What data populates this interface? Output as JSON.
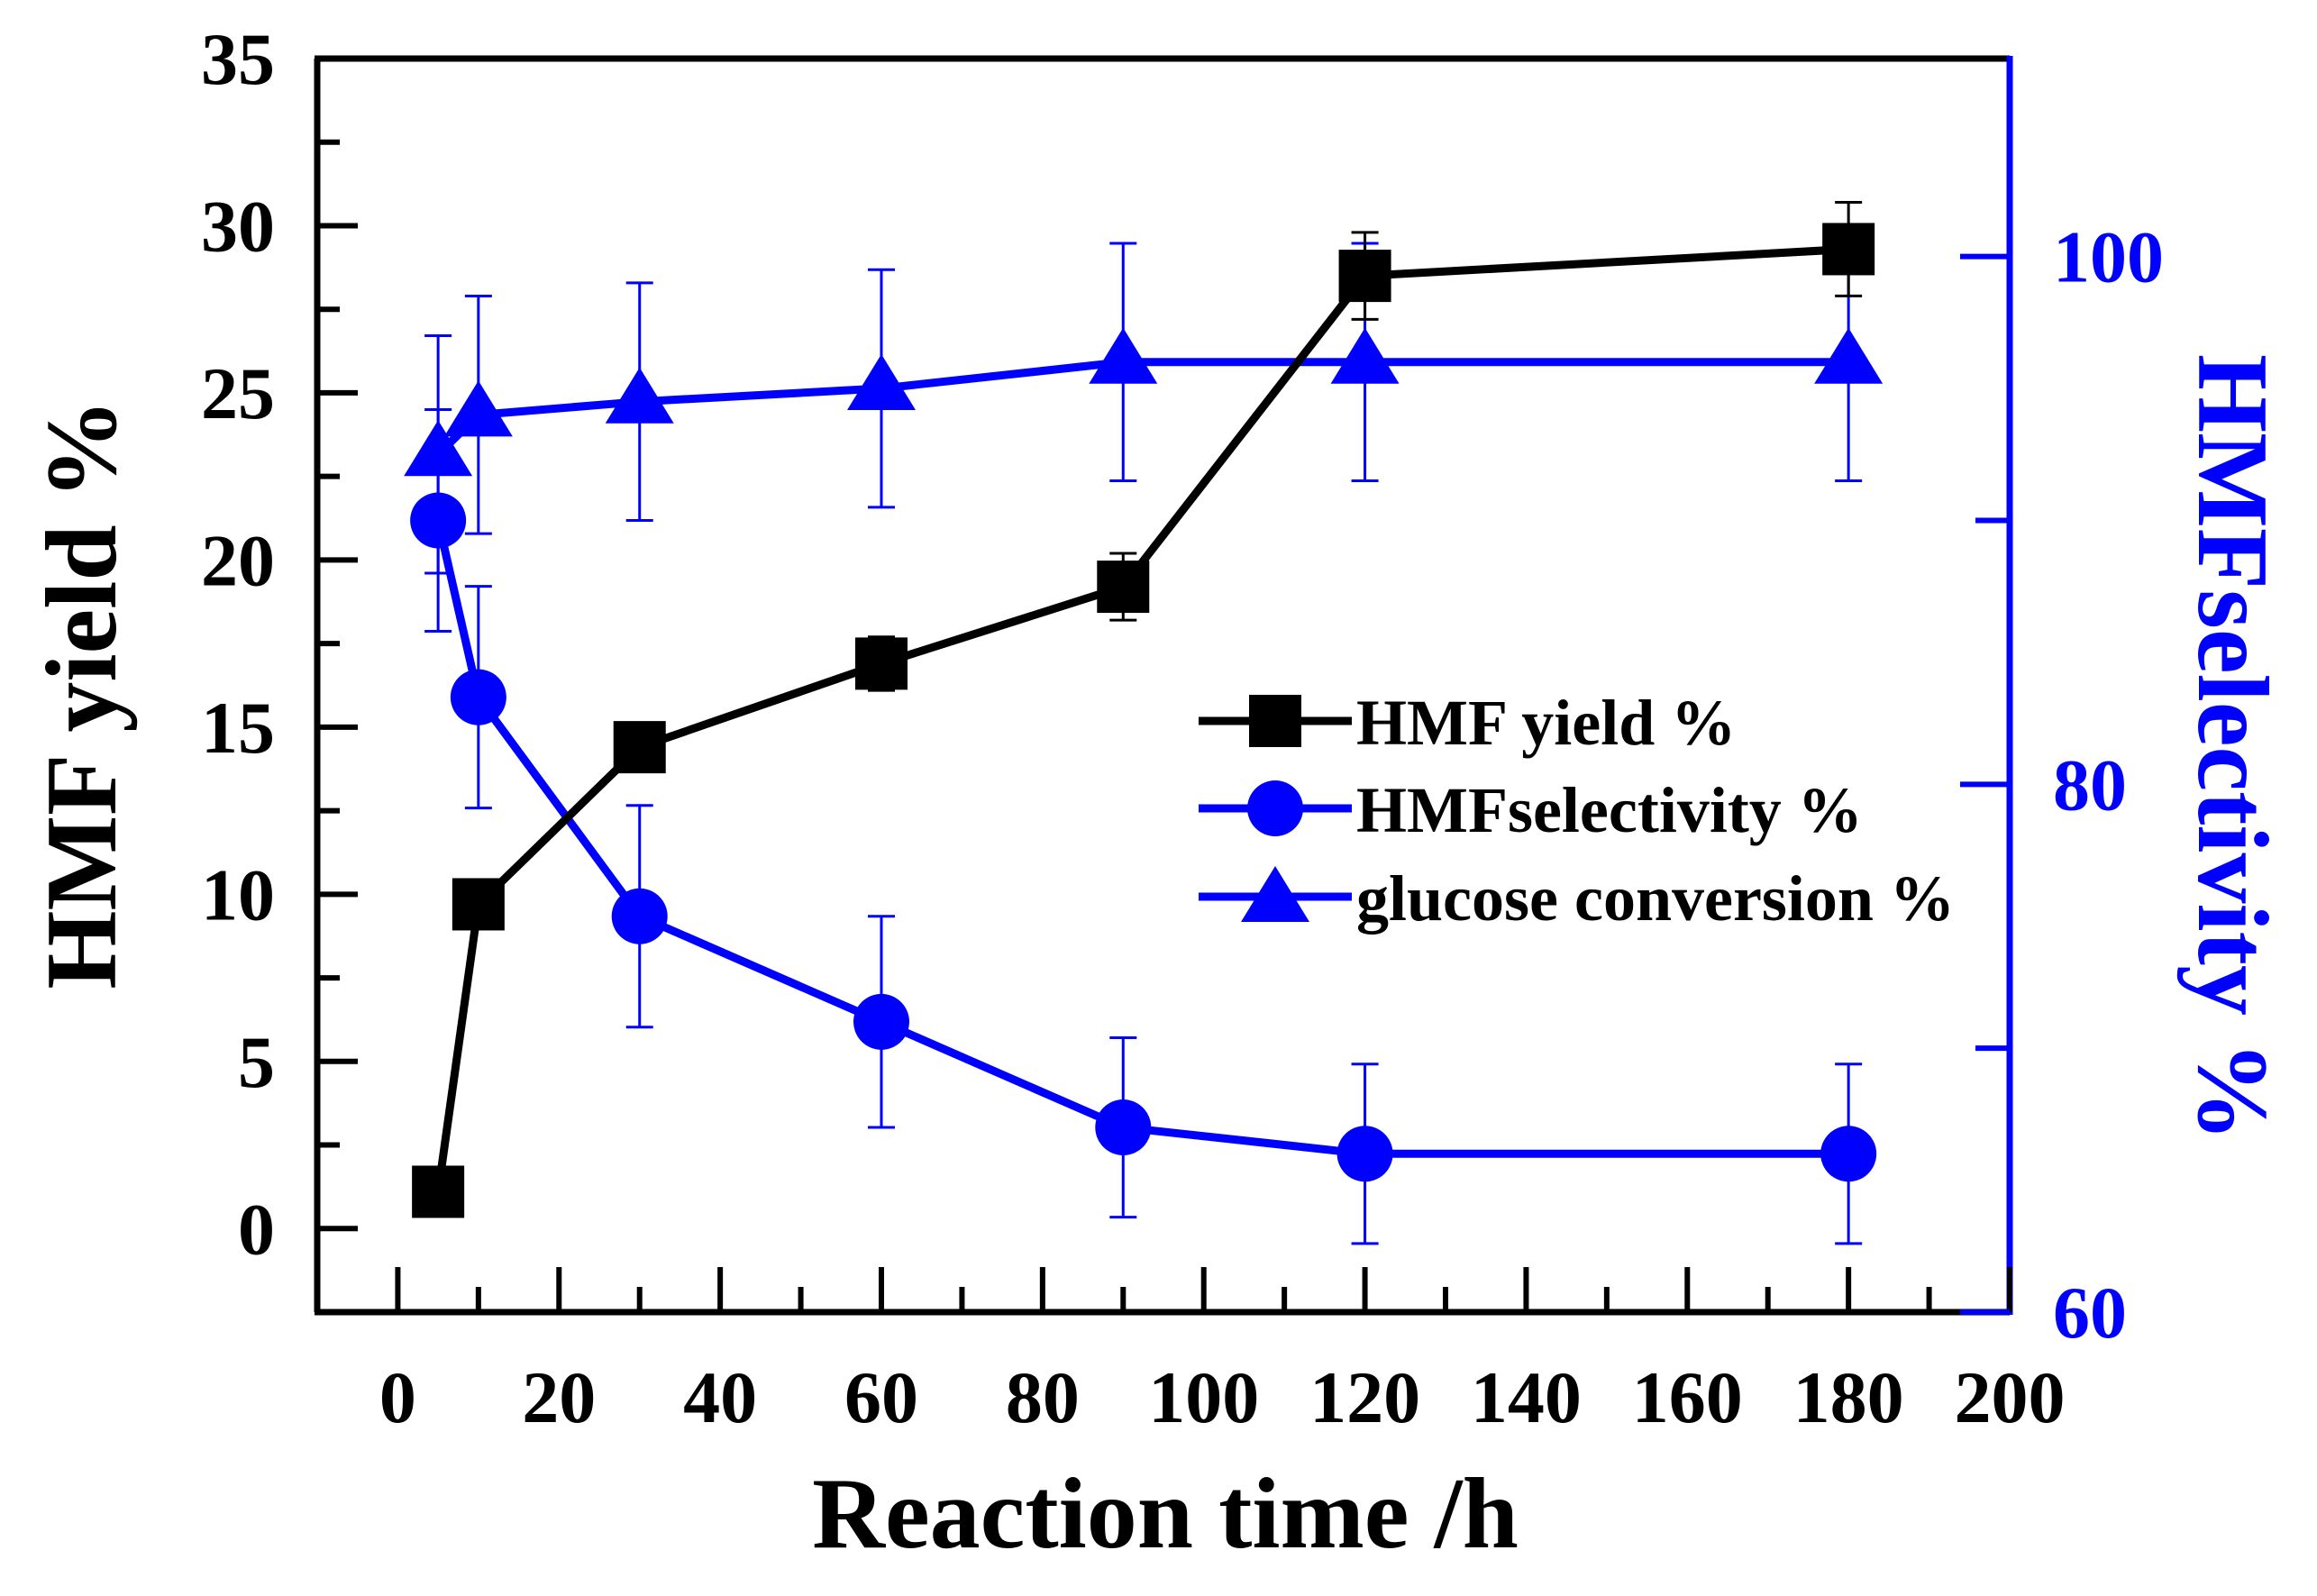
{
  "chart_data": {
    "type": "line",
    "xlabel": "Reaction time /h",
    "ylabel_left": "HMF yield %",
    "ylabel_right": "HMFselectivity %",
    "x_range": [
      -10,
      200
    ],
    "y_left_range": [
      -2.5,
      35
    ],
    "y_right_range": [
      60,
      107.5
    ],
    "x_ticks": [
      0,
      20,
      40,
      60,
      80,
      100,
      120,
      140,
      160,
      180,
      200
    ],
    "y_left_ticks": [
      0,
      5,
      10,
      15,
      20,
      25,
      30,
      35
    ],
    "y_right_ticks": [
      60,
      80,
      100
    ],
    "x": [
      5,
      10,
      30,
      60,
      90,
      120,
      180
    ],
    "series": [
      {
        "name": "HMF yield %",
        "axis": "left",
        "marker": "square",
        "color": "#000000",
        "values": [
          1.1,
          9.7,
          14.4,
          16.9,
          19.2,
          28.5,
          29.3
        ],
        "error_low": [
          null,
          null,
          null,
          0.8,
          1.0,
          1.3,
          1.4
        ],
        "error_high": [
          null,
          null,
          null,
          0.8,
          1.0,
          1.3,
          1.4
        ]
      },
      {
        "name": "HMFselectivity %",
        "axis": "right",
        "marker": "circle",
        "color": "#0000ff",
        "values": [
          90.0,
          83.3,
          75.0,
          71.0,
          67.0,
          66.0,
          66.0
        ],
        "error_low": [
          4.2,
          4.2,
          4.2,
          4.0,
          3.4,
          3.4,
          3.4
        ],
        "error_high": [
          4.2,
          4.2,
          4.2,
          4.0,
          3.4,
          3.4,
          3.4
        ]
      },
      {
        "name": "glucose conversion %",
        "axis": "right",
        "marker": "triangle",
        "color": "#0000ff",
        "values": [
          92.5,
          94.0,
          94.5,
          95.0,
          96.0,
          96.0,
          96.0
        ],
        "error_low": [
          4.5,
          4.5,
          4.5,
          4.5,
          4.5,
          4.5,
          4.5
        ],
        "error_high": [
          4.5,
          4.5,
          4.5,
          4.5,
          4.5,
          4.5,
          4.5
        ]
      }
    ],
    "legend": {
      "position": "center-right",
      "entries": [
        "HMF yield %",
        "HMFselectivity %",
        "glucose conversion %"
      ]
    }
  }
}
